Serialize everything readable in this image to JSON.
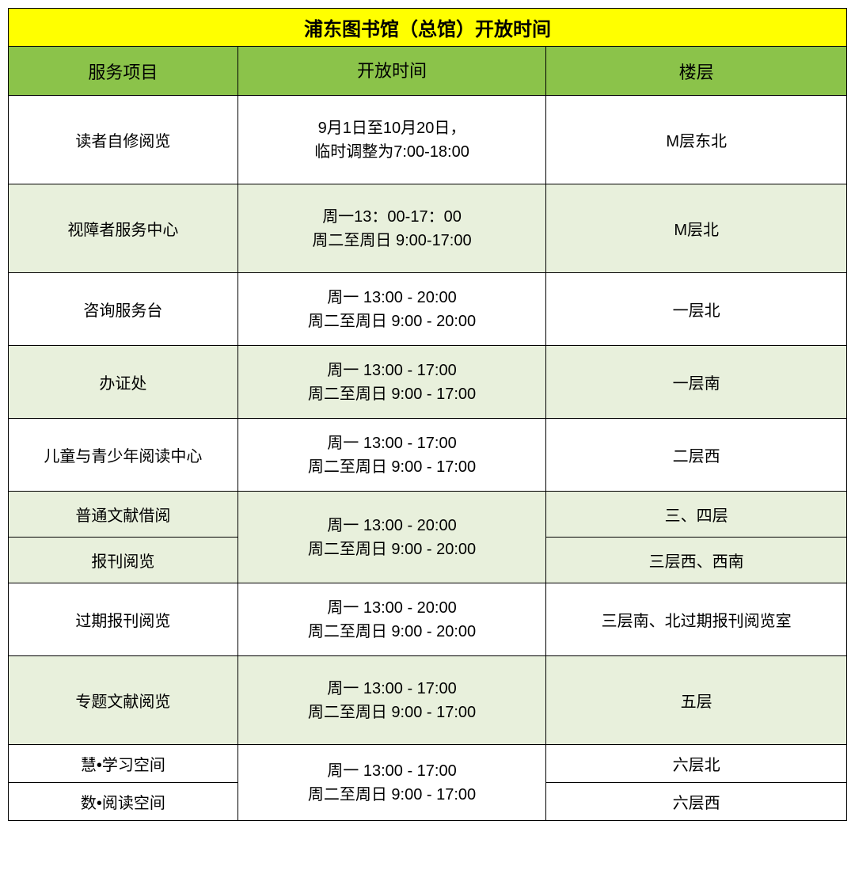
{
  "table": {
    "title": "浦东图书馆（总馆）开放时间",
    "headers": {
      "service": "服务项目",
      "hours": "开放时间",
      "floor": "楼层"
    },
    "colors": {
      "title_bg": "#ffff00",
      "header_bg": "#8bc34a",
      "alt_row_bg": "#e8f0dc",
      "white_bg": "#ffffff",
      "border": "#000000",
      "text": "#000000"
    },
    "rows": [
      {
        "service": "读者自修阅览",
        "hours": "9月1日至10月20日，\n临时调整为7:00-18:00",
        "floor": "M层东北"
      },
      {
        "service": "视障者服务中心",
        "hours": "周一13：00-17：00\n周二至周日 9:00-17:00",
        "floor": "M层北"
      },
      {
        "service": "咨询服务台",
        "hours": "周一 13:00 - 20:00\n周二至周日 9:00 - 20:00",
        "floor": "一层北"
      },
      {
        "service": "办证处",
        "hours": "周一 13:00 - 17:00\n周二至周日 9:00 - 17:00",
        "floor": "一层南"
      },
      {
        "service": "儿童与青少年阅读中心",
        "hours": "周一 13:00 - 17:00\n周二至周日 9:00 - 17:00",
        "floor": "二层西"
      },
      {
        "service": "普通文献借阅",
        "hours": "周一 13:00 - 20:00\n周二至周日 9:00 - 20:00",
        "floor": "三、四层"
      },
      {
        "service": "报刊阅览",
        "floor": "三层西、西南"
      },
      {
        "service": "过期报刊阅览",
        "hours": "周一 13:00 - 20:00\n周二至周日 9:00 - 20:00",
        "floor": "三层南、北过期报刊阅览室"
      },
      {
        "service": "专题文献阅览",
        "hours": "周一 13:00 - 17:00\n周二至周日 9:00 - 17:00",
        "floor": "五层"
      },
      {
        "service": "慧•学习空间",
        "hours": "周一 13:00 - 17:00\n周二至周日 9:00 - 17:00",
        "floor": "六层北"
      },
      {
        "service": "数•阅读空间",
        "floor": "六层西"
      }
    ]
  }
}
